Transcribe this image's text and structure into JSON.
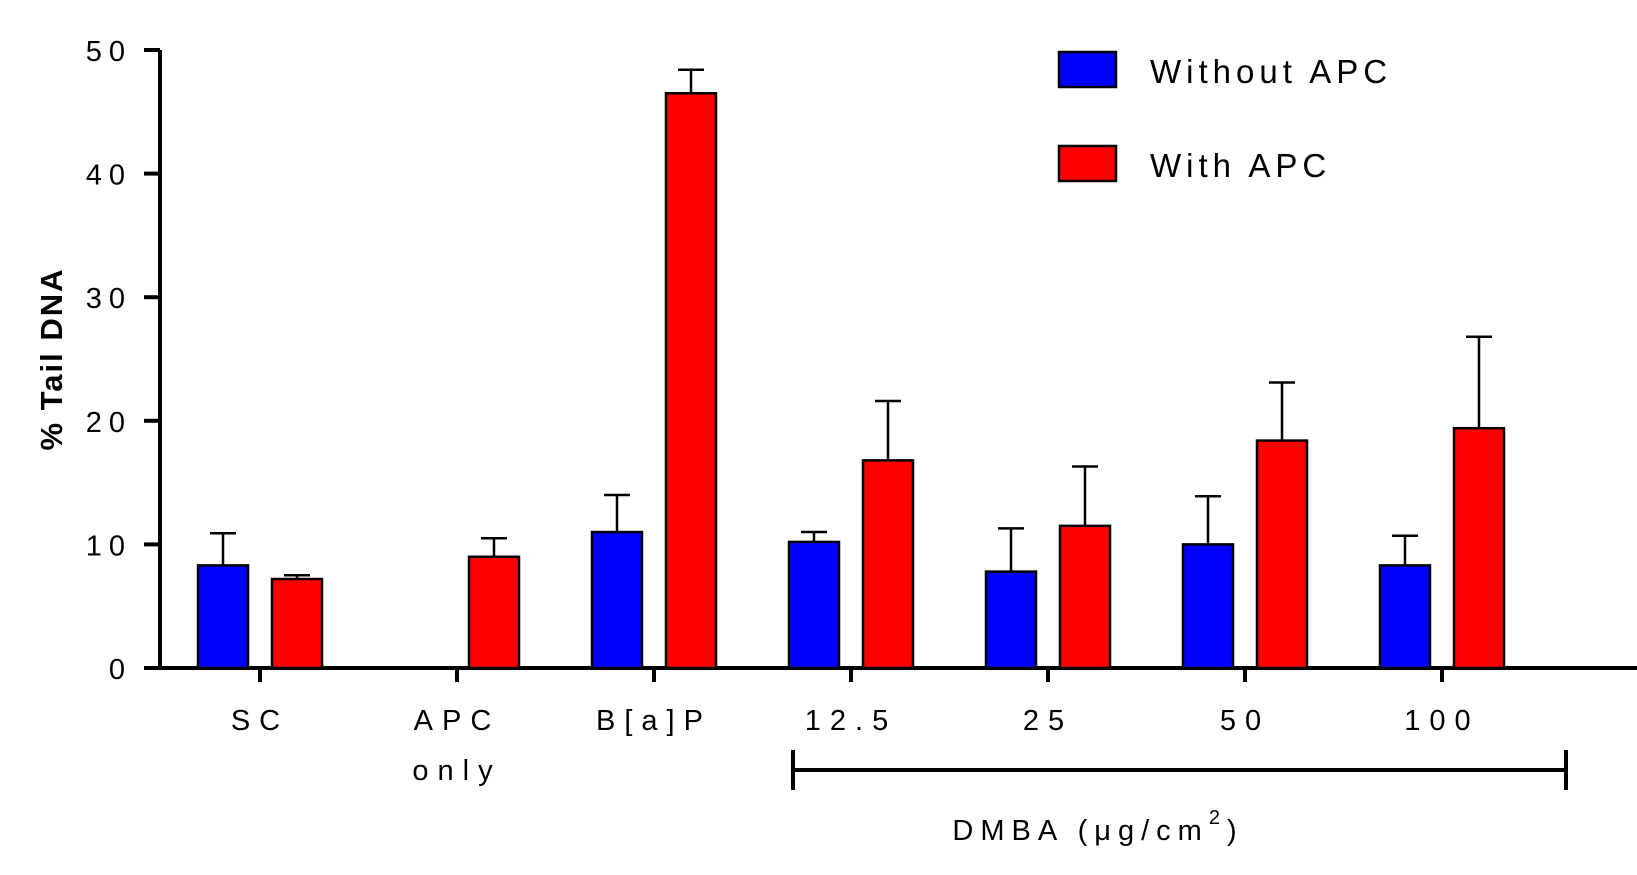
{
  "chart_data": {
    "type": "bar",
    "ylabel": "% Tail DNA",
    "ylim": [
      0,
      50
    ],
    "yticks": [
      "0",
      "10",
      "20",
      "30",
      "40",
      "50"
    ],
    "categories": [
      {
        "line1": "SC",
        "line2": ""
      },
      {
        "line1": "APC",
        "line2": "only"
      },
      {
        "line1": "B[a]P",
        "line2": ""
      },
      {
        "line1": "12.5",
        "line2": ""
      },
      {
        "line1": "25",
        "line2": ""
      },
      {
        "line1": "50",
        "line2": ""
      },
      {
        "line1": "100",
        "line2": ""
      }
    ],
    "series": [
      {
        "name": "Without APC",
        "color": "#0000ff",
        "values": [
          8.3,
          null,
          11.0,
          10.2,
          7.8,
          10.0,
          8.3
        ],
        "errors": [
          2.6,
          null,
          3.0,
          0.8,
          3.5,
          3.9,
          2.4
        ]
      },
      {
        "name": "With APC",
        "color": "#ff0000",
        "values": [
          7.2,
          9.0,
          46.5,
          16.8,
          11.5,
          18.4,
          19.4
        ],
        "errors": [
          0.3,
          1.5,
          1.9,
          4.8,
          4.8,
          4.7,
          7.4
        ]
      }
    ],
    "group_annotation": {
      "label_main": "DMBA (μg/cm",
      "label_sup": "2",
      "label_tail": ")",
      "spans_categories": [
        "12.5",
        "100"
      ]
    },
    "legend_position": "top-right",
    "grid": false
  }
}
